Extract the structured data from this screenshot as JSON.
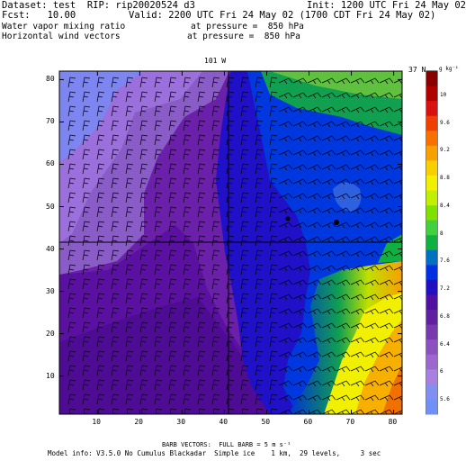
{
  "header": {
    "dataset": "Dataset: test  RIP: rip20020524 d3",
    "init": "Init: 1200 UTC Fri 24 May 02",
    "fcst": "Fcst:   10.00",
    "valid": "Valid: 2200 UTC Fri 24 May 02 (1700 CDT Fri 24 May 02)",
    "field1_name": "Water vapor mixing ratio",
    "field1_level": "at pressure =  850 hPa",
    "field2_name": "Horizontal wind vectors",
    "field2_level": "at pressure =  850 hPa"
  },
  "map": {
    "top_label": "101 W",
    "right_label": "37 N",
    "x_ticks": [
      "10",
      "20",
      "30",
      "40",
      "50",
      "60",
      "70",
      "80"
    ],
    "y_ticks": [
      "10",
      "20",
      "30",
      "40",
      "50",
      "60",
      "70",
      "80"
    ]
  },
  "colorbar": {
    "unit": "g kg⁻¹",
    "labels": [
      "10",
      "9.6",
      "9.2",
      "8.8",
      "8.4",
      "8",
      "7.6",
      "7.2",
      "6.8",
      "6.4",
      "6",
      "5.6"
    ],
    "colors": [
      "#8a0000",
      "#b00000",
      "#d81010",
      "#f04000",
      "#f87000",
      "#f8a000",
      "#f8d000",
      "#f0f000",
      "#c0f000",
      "#80e000",
      "#40d040",
      "#10b040",
      "#0070c0",
      "#0030e0",
      "#2010c0",
      "#5010a0",
      "#6020a0",
      "#7838b0",
      "#8c50c0",
      "#9c68d0",
      "#a880e0",
      "#8090f0",
      "#7090f8"
    ]
  },
  "footer": {
    "barb_legend": "BARB VECTORS:  FULL BARB = 5 m s⁻¹",
    "model_info": "Model info: V3.5.0 No Cumulus Blackadar  Simple ice    1 km,  29 levels,     3 sec"
  }
}
